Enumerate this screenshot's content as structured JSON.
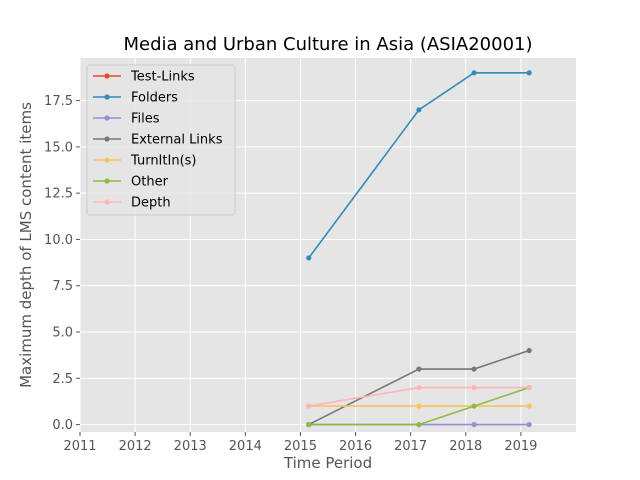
{
  "chart_data": {
    "type": "line",
    "title": "Media and Urban Culture in Asia (ASIA20001)",
    "xlabel": "Time Period",
    "ylabel": "Maximum depth of LMS content items",
    "xlim": [
      2011,
      2020
    ],
    "ylim": [
      -0.4,
      19.8
    ],
    "xticks": [
      2011,
      2012,
      2013,
      2014,
      2015,
      2016,
      2017,
      2018,
      2019
    ],
    "xtick_labels": [
      "2011",
      "2012",
      "2013",
      "2014",
      "2015",
      "2016",
      "2017",
      "2018",
      "2019"
    ],
    "yticks": [
      0,
      2.5,
      5,
      7.5,
      10,
      12.5,
      15,
      17.5
    ],
    "ytick_labels": [
      "0.0",
      "2.5",
      "5.0",
      "7.5",
      "10.0",
      "12.5",
      "15.0",
      "17.5"
    ],
    "grid": true,
    "legend_position": "top-left",
    "x": [
      2015.15,
      2017.15,
      2018.15,
      2019.15
    ],
    "series": [
      {
        "name": "Test-Links",
        "color": "#E24A33",
        "values": [
          null,
          null,
          null,
          null
        ]
      },
      {
        "name": "Folders",
        "color": "#348ABD",
        "values": [
          9,
          17,
          19,
          19
        ]
      },
      {
        "name": "Files",
        "color": "#988ED5",
        "values": [
          0,
          0,
          0,
          0
        ]
      },
      {
        "name": "External Links",
        "color": "#777777",
        "values": [
          0,
          3,
          3,
          4
        ]
      },
      {
        "name": "TurnItIn(s)",
        "color": "#FBC15E",
        "values": [
          1,
          1,
          1,
          1
        ]
      },
      {
        "name": "Other",
        "color": "#8EBA42",
        "values": [
          0,
          0,
          1,
          2
        ]
      },
      {
        "name": "Depth",
        "color": "#FFB5B8",
        "values": [
          1,
          2,
          2,
          2
        ]
      }
    ]
  }
}
